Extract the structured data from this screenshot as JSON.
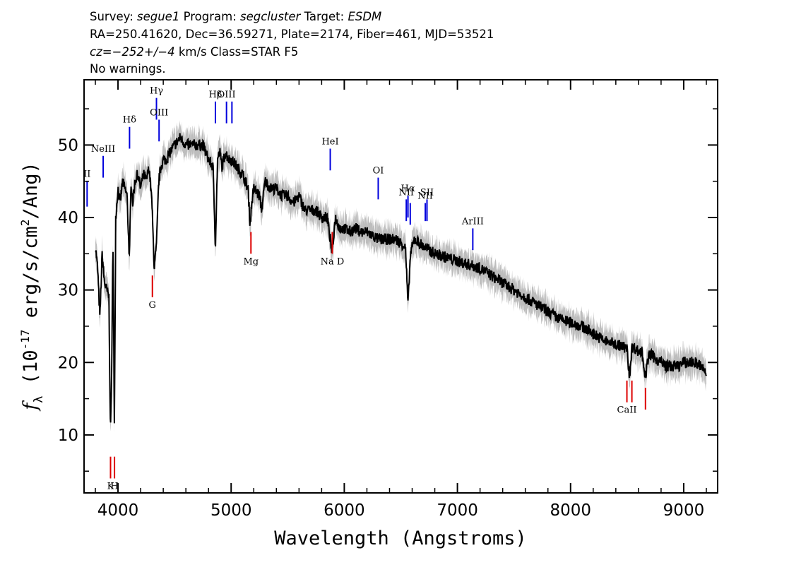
{
  "header": {
    "line1": {
      "survey_label": "Survey: ",
      "survey": "segue1",
      "program_label": " Program: ",
      "program": "segcluster",
      "target_label": " Target: ",
      "target": "ESDM"
    },
    "line2": "RA=250.41620, Dec=36.59271, Plate=2174, Fiber=461, MJD=53521",
    "line3": {
      "cz": "cz=−252+/−4",
      "rest": " km/s Class=STAR F5"
    },
    "line4": "No warnings."
  },
  "colors": {
    "spectrum": "#000000",
    "error_band": "#bdbdbd",
    "emission": "#0000dd",
    "absorption": "#dd0000"
  },
  "chart_data": {
    "type": "line",
    "xlabel": "Wavelength (Angstroms)",
    "ylabel": "f_λ (10^-17 erg/s/cm^2/Ang)",
    "ylabel_parts": {
      "f": "f",
      "lambda": "λ",
      "pre": " (10",
      "exp1": "-17",
      "mid": " erg/s/cm",
      "exp2": "2",
      "post": "/Ang)"
    },
    "xlim": [
      3700,
      9300
    ],
    "ylim": [
      2,
      59
    ],
    "xticks": [
      4000,
      5000,
      6000,
      7000,
      8000,
      9000
    ],
    "yticks": [
      10,
      20,
      30,
      40,
      50
    ],
    "grid": false,
    "series": [
      {
        "role": "flux",
        "x": [
          3800,
          3820,
          3840,
          3860,
          3880,
          3900,
          3920,
          3933,
          3945,
          3955,
          3968,
          3980,
          4000,
          4020,
          4040,
          4060,
          4080,
          4101,
          4115,
          4130,
          4150,
          4175,
          4200,
          4225,
          4250,
          4275,
          4300,
          4320,
          4340,
          4360,
          4380,
          4400,
          4430,
          4460,
          4500,
          4550,
          4600,
          4650,
          4700,
          4750,
          4800,
          4840,
          4861,
          4880,
          4900,
          4920,
          4950,
          4980,
          5000,
          5050,
          5100,
          5150,
          5167,
          5183,
          5200,
          5250,
          5270,
          5300,
          5350,
          5400,
          5450,
          5500,
          5550,
          5600,
          5650,
          5700,
          5750,
          5800,
          5850,
          5893,
          5920,
          5960,
          6000,
          6050,
          6100,
          6150,
          6200,
          6250,
          6300,
          6350,
          6400,
          6450,
          6500,
          6540,
          6563,
          6585,
          6620,
          6700,
          6800,
          6900,
          7000,
          7100,
          7200,
          7300,
          7400,
          7500,
          7600,
          7700,
          7800,
          7900,
          8000,
          8100,
          8200,
          8300,
          8400,
          8498,
          8520,
          8542,
          8570,
          8600,
          8630,
          8662,
          8690,
          8720,
          8750,
          8800,
          8850,
          8900,
          8950,
          9000,
          9050,
          9100,
          9150,
          9200
        ],
        "y": [
          36,
          33,
          26,
          35,
          31,
          30,
          29,
          10,
          19,
          38,
          11,
          40,
          44,
          42,
          45,
          44,
          43,
          34,
          45,
          42,
          45,
          46,
          44,
          46,
          45,
          47,
          42,
          33,
          36,
          45,
          47,
          48,
          48,
          49,
          50,
          51,
          50,
          50,
          50,
          50,
          48,
          47,
          36,
          48,
          49,
          47,
          49,
          48,
          48,
          47,
          46,
          44,
          39,
          42,
          44,
          43,
          41,
          45,
          44,
          44,
          43,
          43,
          42,
          43,
          41,
          41,
          41,
          40,
          40,
          35,
          40,
          38.5,
          38.5,
          38,
          38.5,
          38,
          38,
          37.5,
          37,
          37,
          37,
          37,
          36.5,
          36,
          28,
          35,
          37,
          36,
          35,
          34.5,
          34,
          33.5,
          33,
          32,
          31,
          30,
          29,
          28,
          27,
          26,
          25.5,
          25,
          24,
          23,
          22.5,
          22,
          18,
          22,
          22,
          21.5,
          21.5,
          18,
          21,
          21,
          20.5,
          20,
          19.5,
          19.5,
          19.5,
          20,
          20,
          20,
          19.5,
          18.5
        ]
      }
    ],
    "line_labels": {
      "emission": [
        {
          "name": "II",
          "x": 3727,
          "top": 45,
          "bot": 41.5
        },
        {
          "name": "NeIII",
          "x": 3869,
          "top": 48.5,
          "bot": 45.5
        },
        {
          "name": "Hδ",
          "x": 4102,
          "top": 52.5,
          "bot": 49.5
        },
        {
          "name": "Hγ",
          "x": 4340,
          "top": 56.5,
          "bot": 53.5
        },
        {
          "name": "OIII",
          "x": 4363,
          "top": 53.5,
          "bot": 50.5
        },
        {
          "name": "Hβ",
          "x": 4861,
          "top": 56,
          "bot": 53
        },
        {
          "name": "OIII",
          "x": 4959,
          "top": 56,
          "bot": 53
        },
        {
          "name": "",
          "x": 5007,
          "top": 56,
          "bot": 53
        },
        {
          "name": "HeI",
          "x": 5876,
          "top": 49.5,
          "bot": 46.5
        },
        {
          "name": "OI",
          "x": 6300,
          "top": 45.5,
          "bot": 42.5
        },
        {
          "name": "NII",
          "x": 6548,
          "top": 42.5,
          "bot": 39.5
        },
        {
          "name": "Hα",
          "x": 6563,
          "top": 43,
          "bot": 40
        },
        {
          "name": "",
          "x": 6583,
          "top": 42,
          "bot": 39
        },
        {
          "name": "NII",
          "x": 6716,
          "top": 42,
          "bot": 39.5
        },
        {
          "name": "SII",
          "x": 6731,
          "top": 42.5,
          "bot": 39.5
        },
        {
          "name": "ArIII",
          "x": 7136,
          "top": 38.5,
          "bot": 35.5
        }
      ],
      "absorption": [
        {
          "name": "K",
          "x": 3934,
          "top": 7,
          "bot": 4
        },
        {
          "name": "H",
          "x": 3969,
          "top": 7,
          "bot": 4
        },
        {
          "name": "G",
          "x": 4304,
          "top": 32,
          "bot": 29
        },
        {
          "name": "Mg",
          "x": 5175,
          "top": 38,
          "bot": 35
        },
        {
          "name": "Na D",
          "x": 5894,
          "top": 38,
          "bot": 35
        },
        {
          "name": "CaII",
          "x": 8498,
          "top": 17.5,
          "bot": 14.5
        },
        {
          "name": "",
          "x": 8542,
          "top": 17.5,
          "bot": 14.5
        },
        {
          "name": "",
          "x": 8662,
          "top": 16.5,
          "bot": 13.5
        }
      ]
    }
  }
}
